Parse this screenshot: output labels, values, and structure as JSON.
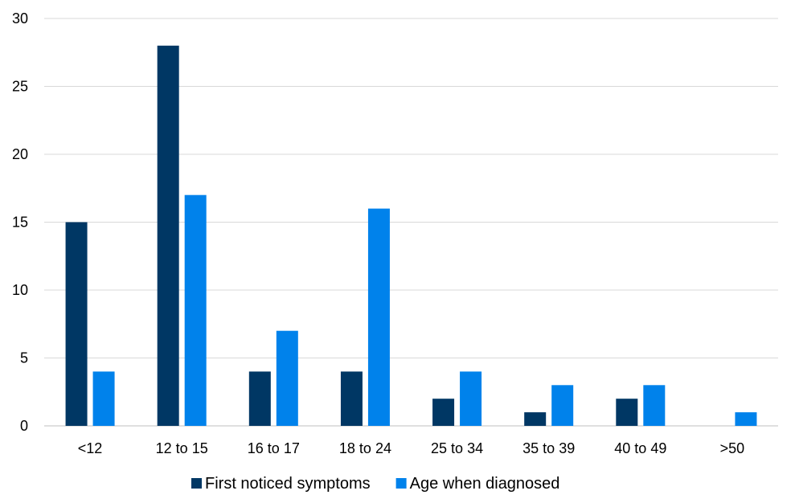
{
  "chart_data": {
    "type": "bar",
    "title": "",
    "xlabel": "",
    "ylabel": "",
    "categories": [
      "<12",
      "12 to 15",
      "16 to 17",
      "18 to 24",
      "25 to 34",
      "35 to 39",
      "40 to 49",
      ">50"
    ],
    "series": [
      {
        "name": "First noticed symptoms",
        "color": "#003764",
        "values": [
          15,
          28,
          4,
          4,
          2,
          1,
          2,
          0
        ]
      },
      {
        "name": "Age when diagnosed",
        "color": "#0082eb",
        "values": [
          4,
          17,
          7,
          16,
          4,
          3,
          3,
          1
        ]
      }
    ],
    "ylim": [
      0,
      30
    ],
    "yticks": [
      0,
      5,
      10,
      15,
      20,
      25,
      30
    ],
    "grid": true,
    "legend_position": "bottom"
  }
}
